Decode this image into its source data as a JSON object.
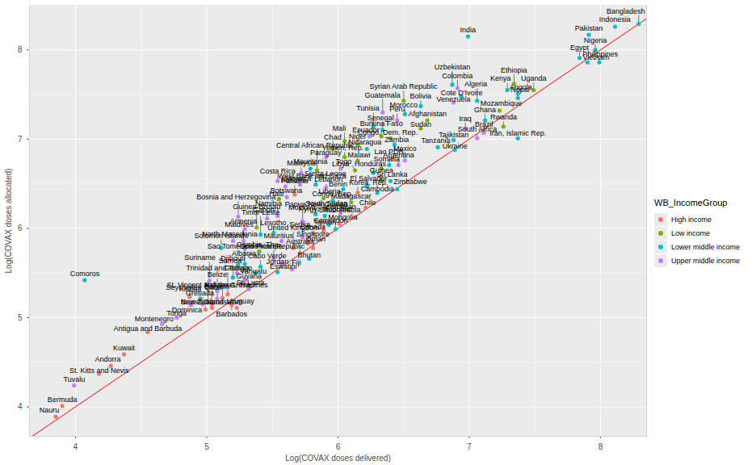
{
  "chart_data": {
    "type": "scatter",
    "x_label": "Log(COVAX doses delivered)",
    "y_label": "Log(COVAX doses allocated)",
    "xlim": [
      3.65,
      8.35
    ],
    "ylim": [
      3.67,
      8.5
    ],
    "xticks": [
      4,
      5,
      6,
      7,
      8
    ],
    "yticks": [
      4,
      5,
      6,
      7,
      8
    ],
    "grid": true,
    "legend": "right",
    "legend_title": "WB_IncomeGroup",
    "data_labels": true,
    "reference_line": {
      "x": [
        3.65,
        8.35
      ],
      "y": [
        3.65,
        8.35
      ],
      "color": "#ff0000"
    },
    "series": [
      {
        "name": "High income",
        "color": "#F8766D",
        "labels": [
          "Nauru",
          "Bermuda",
          "St. Kitts and Nevis",
          "Andorra",
          "Kuwait",
          "Antigua and Barbuda",
          "Seychelles",
          "New Zealand",
          "Qatar",
          "Brunei Darussalam",
          "Bahrain",
          "Bahamas, The",
          "Trinidad and Tobago",
          "Barbados",
          "Uruguay",
          "United Kingdom",
          "Australia",
          "Singapore",
          "Oman",
          "Canada",
          "Taiwan",
          "Saudi Arabia",
          "Panama",
          "Korea, Rep.",
          "Chile"
        ],
        "x": [
          3.85,
          3.9,
          4.18,
          4.27,
          4.37,
          4.55,
          4.87,
          4.99,
          5.01,
          5.04,
          5.04,
          5.12,
          5.16,
          5.19,
          5.23,
          5.66,
          5.71,
          5.77,
          5.81,
          5.81,
          5.89,
          6.01,
          5.67,
          6.15,
          6.21
        ],
        "values": [
          3.89,
          4.01,
          4.37,
          4.46,
          4.59,
          4.84,
          5.23,
          5.09,
          5.18,
          5.11,
          5.15,
          5.22,
          5.26,
          5.14,
          5.11,
          5.78,
          5.72,
          5.83,
          5.78,
          5.95,
          5.97,
          6.05,
          6.38,
          6.4,
          6.23
        ]
      },
      {
        "name": "Low income",
        "color": "#7CAE00",
        "labels": [
          "Gambia, The",
          "Guinea-Bissau",
          "South Sudan",
          "Haiti",
          "Liberia",
          "Madagascar",
          "Central African Republic",
          "Sierra Leone",
          "Togo",
          "Guinea",
          "Chad",
          "Yemen, Rep.",
          "Malawi",
          "Somalia",
          "Mali",
          "Niger",
          "Burkina Faso",
          "Congo, Dem. Rep.",
          "Sudan",
          "Afghanistan",
          "Syrian Arab Republic",
          "Mozambique",
          "Rwanda",
          "Ethiopia",
          "Uganda"
        ],
        "x": [
          5.4,
          5.38,
          5.91,
          5.55,
          5.89,
          6.1,
          5.84,
          5.87,
          6.13,
          6.33,
          5.96,
          6.05,
          6.15,
          6.33,
          6.05,
          6.15,
          6.33,
          6.4,
          6.63,
          6.68,
          6.5,
          7.23,
          7.26,
          7.34,
          7.49
        ],
        "values": [
          5.74,
          6.01,
          6.22,
          6.33,
          6.34,
          6.29,
          6.65,
          6.59,
          6.65,
          6.54,
          6.89,
          6.8,
          6.76,
          6.67,
          6.98,
          6.94,
          7.03,
          7.01,
          7.12,
          7.21,
          7.43,
          7.32,
          7.14,
          7.62,
          7.55
        ]
      },
      {
        "name": "Lower middle income",
        "color": "#00BFC4",
        "labels": [
          "Comoros",
          "Kiribati",
          "Samoa",
          "Sao Tome and Principe",
          "Vanuatu",
          "Cabo Verde",
          "Eswatini",
          "Djibouti",
          "Solomon Islands",
          "Timor-Leste",
          "Lesotho",
          "Bhutan",
          "Mongolia",
          "Cameroon",
          "Kyrgyz Republic",
          "Papua New Guinea",
          "Congo, Rep.",
          "Benin",
          "El Salvador",
          "Cambodia",
          "West Bank and Gaza",
          "Mauritania",
          "Honduras",
          "Sri Lanka",
          "Zimbabwe",
          "Lao PDR",
          "Nicaragua",
          "Zambia",
          "Tunisia",
          "Senegal",
          "Tanzania",
          "Ukraine",
          "Morocco",
          "Tajikistan",
          "Bolivia",
          "Uzbekistan",
          "Cote D'Ivoire",
          "Algeria",
          "Ghana",
          "Iran, Islamic Rep.",
          "Kenya",
          "Angola",
          "Nepal",
          "India",
          "Egypt",
          "Vietnam",
          "Philippines",
          "Nigeria",
          "Pakistan",
          "Indonesia",
          "Bangladesh"
        ],
        "x": [
          4.07,
          4.95,
          5.2,
          5.29,
          5.37,
          5.41,
          5.54,
          5.24,
          5.11,
          5.41,
          5.51,
          5.78,
          5.98,
          5.93,
          5.9,
          5.83,
          5.96,
          6.04,
          6.22,
          6.3,
          5.83,
          5.79,
          6.27,
          6.4,
          6.45,
          6.39,
          6.22,
          6.43,
          6.27,
          6.34,
          6.76,
          6.89,
          6.51,
          6.88,
          6.63,
          6.87,
          6.94,
          7.06,
          7.12,
          7.37,
          7.29,
          7.37,
          7.37,
          6.99,
          7.84,
          7.9,
          7.99,
          7.96,
          7.91,
          8.11,
          8.29
        ],
        "values": [
          5.42,
          5.21,
          5.45,
          5.6,
          5.5,
          5.57,
          5.51,
          5.59,
          5.78,
          5.93,
          5.95,
          5.66,
          5.99,
          6.04,
          6.14,
          6.16,
          6.31,
          6.44,
          6.47,
          6.4,
          6.49,
          6.67,
          6.62,
          6.53,
          6.44,
          6.71,
          6.89,
          6.94,
          7.14,
          7.1,
          6.91,
          6.88,
          7.28,
          6.99,
          7.37,
          7.61,
          7.48,
          7.43,
          7.21,
          7.01,
          7.55,
          7.51,
          7.46,
          8.15,
          7.91,
          7.86,
          7.86,
          8.0,
          8.17,
          8.26,
          8.29
        ]
      },
      {
        "name": "Upper middle income",
        "color": "#C77CFF",
        "labels": [
          "Tuvalu",
          "Montenegro",
          "Tonga",
          "Dominica",
          "Grenada",
          "St. Vincent and the Grenadines",
          "Belize",
          "Suriname",
          "Georgia",
          "Guyana",
          "St. Lucia",
          "Jordan",
          "Fiji",
          "Dominican Republic",
          "Albania",
          "North Macedonia",
          "Maldives",
          "Mauritius",
          "Armenia",
          "Bosnia and Herzegovina",
          "Serbia",
          "Moldova",
          "Azerbaijan",
          "Gabon",
          "Namibia",
          "Botswana",
          "Costa Rica",
          "Kosovo",
          "Jamaica",
          "Lebanon",
          "Malaysia",
          "Paraguay",
          "Libya",
          "Argentina",
          "Mexico",
          "Ecuador",
          "Peru",
          "Guatemala",
          "Iraq",
          "South Africa",
          "Colombia",
          "Venezuela",
          "Brazil"
        ],
        "x": [
          3.99,
          4.66,
          4.77,
          4.88,
          4.97,
          5.08,
          5.08,
          5.02,
          5.23,
          5.29,
          5.32,
          5.57,
          5.65,
          5.51,
          5.29,
          5.2,
          5.28,
          5.57,
          5.29,
          5.24,
          5.73,
          5.73,
          6.02,
          5.46,
          5.54,
          5.61,
          5.54,
          5.6,
          5.71,
          5.91,
          5.72,
          5.91,
          6.02,
          6.46,
          6.51,
          6.24,
          6.45,
          6.34,
          6.97,
          7.06,
          6.91,
          6.88,
          7.11
        ],
        "values": [
          4.24,
          4.93,
          5.0,
          5.14,
          5.15,
          5.21,
          5.3,
          5.41,
          5.5,
          5.42,
          5.32,
          5.6,
          5.54,
          5.66,
          5.77,
          5.86,
          5.86,
          5.86,
          5.99,
          6.13,
          5.9,
          6.08,
          6.17,
          6.11,
          6.14,
          6.35,
          6.53,
          6.47,
          6.49,
          6.46,
          6.62,
          6.8,
          6.67,
          6.71,
          6.76,
          7.03,
          7.21,
          7.3,
          7.12,
          7.01,
          7.57,
          7.41,
          7.07
        ]
      }
    ]
  }
}
